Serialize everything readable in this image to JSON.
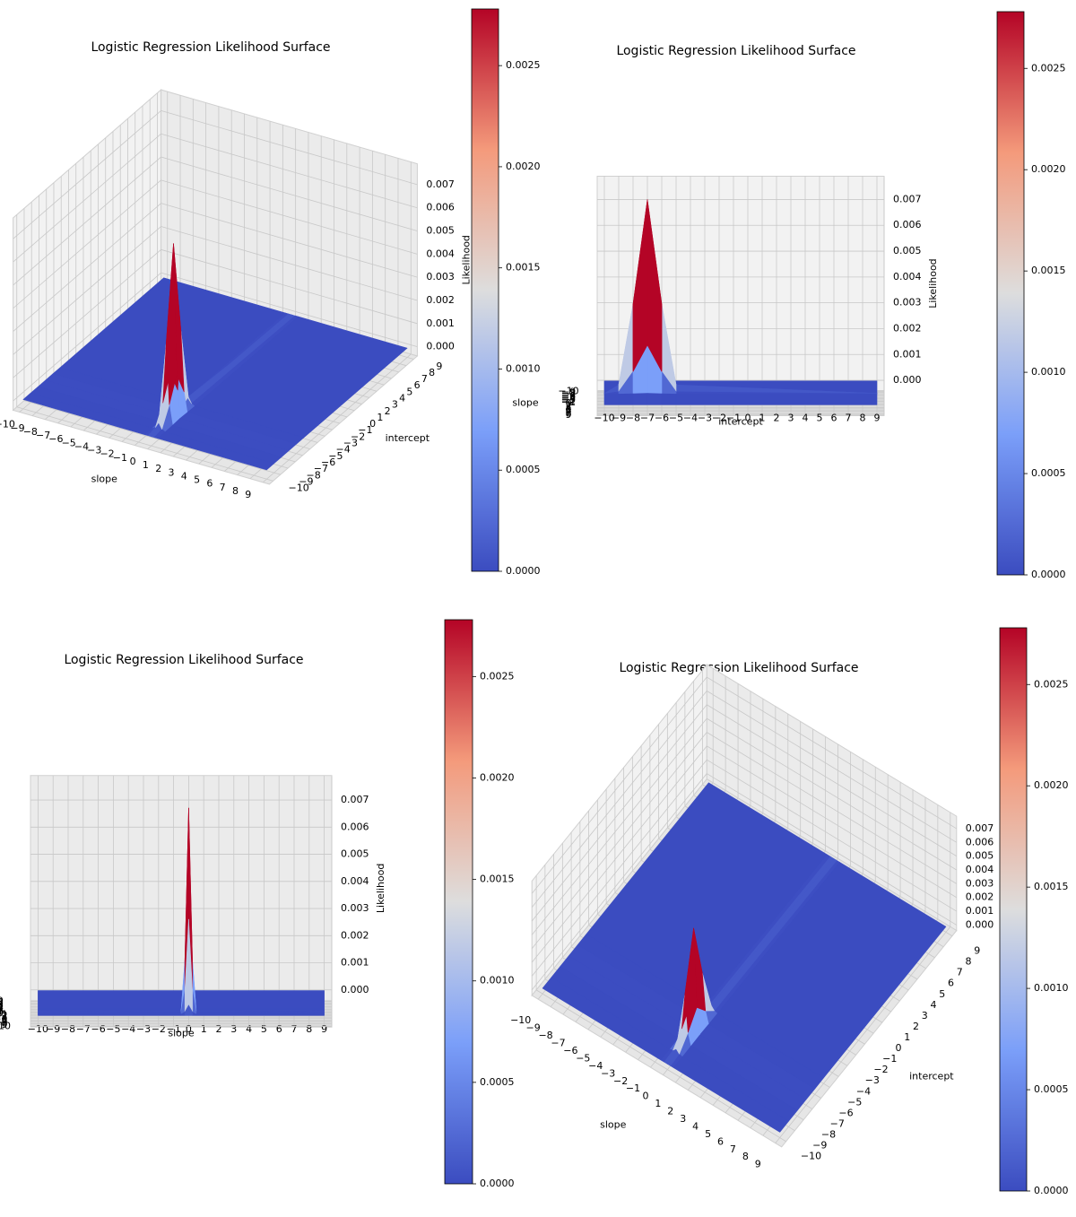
{
  "chart_data": [
    {
      "type": "surface3d",
      "title": "Logistic Regression Likelihood Surface",
      "xlabel": "slope",
      "ylabel": "intercept",
      "zlabel": "Likelihood",
      "xlim": [
        -10.5,
        9.5
      ],
      "ylim": [
        -10.5,
        9.5
      ],
      "zlim": [
        -0.0004,
        0.0079
      ],
      "xticks": [
        {
          "value": -10,
          "label": "−10"
        },
        {
          "value": -9,
          "label": "−9"
        },
        {
          "value": -8,
          "label": "−8"
        },
        {
          "value": -7,
          "label": "−7"
        },
        {
          "value": -6,
          "label": "−6"
        },
        {
          "value": -5,
          "label": "−5"
        },
        {
          "value": -4,
          "label": "−4"
        },
        {
          "value": -3,
          "label": "−3"
        },
        {
          "value": -2,
          "label": "−2"
        },
        {
          "value": -1,
          "label": "−1"
        },
        0,
        1,
        2,
        3,
        4,
        5,
        6,
        7,
        8,
        9
      ],
      "yticks": [
        {
          "value": -10,
          "label": "−10"
        },
        {
          "value": -9,
          "label": "−9"
        },
        {
          "value": -8,
          "label": "−8"
        },
        {
          "value": -7,
          "label": "−7"
        },
        {
          "value": -6,
          "label": "−6"
        },
        {
          "value": -5,
          "label": "−5"
        },
        {
          "value": -4,
          "label": "−4"
        },
        {
          "value": -3,
          "label": "−3"
        },
        {
          "value": -2,
          "label": "−2"
        },
        {
          "value": -1,
          "label": "−1"
        },
        0,
        1,
        2,
        3,
        4,
        5,
        6,
        7,
        8,
        9
      ],
      "zticks": [
        {
          "value": 0,
          "label": "0.000"
        },
        0.001,
        0.002,
        0.003,
        0.004,
        0.005,
        0.006,
        0.007
      ],
      "x": [
        -10,
        -0.5,
        -0.25,
        0,
        0.25,
        0.5,
        9
      ],
      "y": [
        -10,
        -9,
        -8,
        -7,
        -6,
        -5,
        9
      ],
      "z": [
        [
          0,
          0,
          0,
          0,
          0,
          0,
          0
        ],
        [
          0,
          0,
          1e-05,
          3e-05,
          1e-05,
          0,
          0
        ],
        [
          0,
          8e-05,
          0.00086,
          0.00188,
          0.00086,
          8e-05,
          0
        ],
        [
          0,
          0.00033,
          0.00345,
          0.0075,
          0.00345,
          0.00033,
          0
        ],
        [
          0,
          8e-05,
          0.00086,
          0.00188,
          0.00086,
          8e-05,
          0
        ],
        [
          0,
          0,
          1e-05,
          3e-05,
          1e-05,
          0,
          0
        ],
        [
          0,
          0,
          0,
          0,
          0,
          0,
          0
        ]
      ],
      "colormap": "coolwarm",
      "clim": [
        0,
        0.00278
      ],
      "colorbar_ticks": [
        {
          "value": 0,
          "label": "0.0000"
        },
        0.0005,
        {
          "value": 0.001,
          "label": "0.0010"
        },
        0.0015,
        {
          "value": 0.002,
          "label": "0.0020"
        },
        0.0025
      ],
      "view": {
        "elev": 30,
        "azim": -60
      }
    },
    {
      "type": "surface3d",
      "title": "Logistic Regression Likelihood Surface",
      "xlabel": "slope",
      "ylabel": "intercept",
      "zlabel": "Likelihood",
      "xlim": [
        -10.5,
        9.5
      ],
      "ylim": [
        -10.5,
        9.5
      ],
      "zlim": [
        -0.0004,
        0.0079
      ],
      "xticks": [
        {
          "value": -10,
          "label": "−10"
        },
        {
          "value": -9,
          "label": "−9"
        },
        {
          "value": -8,
          "label": "−8"
        },
        {
          "value": -7,
          "label": "−7"
        },
        {
          "value": -6,
          "label": "−6"
        },
        {
          "value": -5,
          "label": "−5"
        },
        {
          "value": -4,
          "label": "−4"
        },
        {
          "value": -3,
          "label": "−3"
        },
        {
          "value": -2,
          "label": "−2"
        },
        {
          "value": -1,
          "label": "−1"
        },
        0,
        1,
        2,
        3,
        4,
        5,
        6,
        7,
        8,
        9
      ],
      "yticks": [
        {
          "value": -10,
          "label": "−10"
        },
        {
          "value": -9,
          "label": "−9"
        },
        {
          "value": -8,
          "label": "−8"
        },
        {
          "value": -7,
          "label": "−7"
        },
        {
          "value": -6,
          "label": "−6"
        },
        {
          "value": -5,
          "label": "−5"
        },
        {
          "value": -4,
          "label": "−4"
        },
        {
          "value": -3,
          "label": "−3"
        },
        {
          "value": -2,
          "label": "−2"
        },
        {
          "value": -1,
          "label": "−1"
        },
        0,
        1,
        2,
        3,
        4,
        5,
        6,
        7,
        8,
        9
      ],
      "zticks": [
        {
          "value": 0,
          "label": "0.000"
        },
        0.001,
        0.002,
        0.003,
        0.004,
        0.005,
        0.006,
        0.007
      ],
      "x": [
        -10,
        -0.5,
        -0.25,
        0,
        0.25,
        0.5,
        9
      ],
      "y": [
        -10,
        -9,
        -8,
        -7,
        -6,
        -5,
        9
      ],
      "z": [
        [
          0,
          0,
          0,
          0,
          0,
          0,
          0
        ],
        [
          0,
          0,
          1e-05,
          3e-05,
          1e-05,
          0,
          0
        ],
        [
          0,
          8e-05,
          0.00086,
          0.00188,
          0.00086,
          8e-05,
          0
        ],
        [
          0,
          0.00033,
          0.00345,
          0.0075,
          0.00345,
          0.00033,
          0
        ],
        [
          0,
          8e-05,
          0.00086,
          0.00188,
          0.00086,
          8e-05,
          0
        ],
        [
          0,
          0,
          1e-05,
          3e-05,
          1e-05,
          0,
          0
        ],
        [
          0,
          0,
          0,
          0,
          0,
          0,
          0
        ]
      ],
      "colormap": "coolwarm",
      "clim": [
        0,
        0.00278
      ],
      "colorbar_ticks": [
        {
          "value": 0,
          "label": "0.0000"
        },
        0.0005,
        {
          "value": 0.001,
          "label": "0.0010"
        },
        0.0015,
        {
          "value": 0.002,
          "label": "0.0020"
        },
        0.0025
      ],
      "view": {
        "elev": 5,
        "azim": 0
      }
    },
    {
      "type": "surface3d",
      "title": "Logistic Regression Likelihood Surface",
      "xlabel": "slope",
      "ylabel": "intercept",
      "zlabel": "Likelihood",
      "xlim": [
        -10.5,
        9.5
      ],
      "ylim": [
        -10.5,
        9.5
      ],
      "zlim": [
        -0.0004,
        0.0079
      ],
      "xticks": [
        {
          "value": -10,
          "label": "−10"
        },
        {
          "value": -9,
          "label": "−9"
        },
        {
          "value": -8,
          "label": "−8"
        },
        {
          "value": -7,
          "label": "−7"
        },
        {
          "value": -6,
          "label": "−6"
        },
        {
          "value": -5,
          "label": "−5"
        },
        {
          "value": -4,
          "label": "−4"
        },
        {
          "value": -3,
          "label": "−3"
        },
        {
          "value": -2,
          "label": "−2"
        },
        {
          "value": -1,
          "label": "−1"
        },
        0,
        1,
        2,
        3,
        4,
        5,
        6,
        7,
        8,
        9
      ],
      "yticks": [
        {
          "value": -10,
          "label": "−10"
        },
        {
          "value": -9,
          "label": "−9"
        },
        {
          "value": -8,
          "label": "−8"
        },
        {
          "value": -7,
          "label": "−7"
        },
        {
          "value": -6,
          "label": "−6"
        },
        {
          "value": -5,
          "label": "−5"
        },
        {
          "value": -4,
          "label": "−4"
        },
        {
          "value": -3,
          "label": "−3"
        },
        {
          "value": -2,
          "label": "−2"
        },
        {
          "value": -1,
          "label": "−1"
        },
        0,
        1,
        2,
        3,
        4,
        5,
        6,
        7,
        8,
        9
      ],
      "zticks": [
        {
          "value": 0,
          "label": "0.000"
        },
        0.001,
        0.002,
        0.003,
        0.004,
        0.005,
        0.006,
        0.007
      ],
      "x": [
        -10,
        -0.5,
        -0.25,
        0,
        0.25,
        0.5,
        9
      ],
      "y": [
        -10,
        -9,
        -8,
        -7,
        -6,
        -5,
        9
      ],
      "z": [
        [
          0,
          0,
          0,
          0,
          0,
          0,
          0
        ],
        [
          0,
          0,
          1e-05,
          3e-05,
          1e-05,
          0,
          0
        ],
        [
          0,
          8e-05,
          0.00086,
          0.00188,
          0.00086,
          8e-05,
          0
        ],
        [
          0,
          0.00033,
          0.00345,
          0.0075,
          0.00345,
          0.00033,
          0
        ],
        [
          0,
          8e-05,
          0.00086,
          0.00188,
          0.00086,
          8e-05,
          0
        ],
        [
          0,
          0,
          1e-05,
          3e-05,
          1e-05,
          0,
          0
        ],
        [
          0,
          0,
          0,
          0,
          0,
          0,
          0
        ]
      ],
      "colormap": "coolwarm",
      "clim": [
        0,
        0.00278
      ],
      "colorbar_ticks": [
        {
          "value": 0,
          "label": "0.0000"
        },
        0.0005,
        {
          "value": 0.001,
          "label": "0.0010"
        },
        0.0015,
        {
          "value": 0.002,
          "label": "0.0020"
        },
        0.0025
      ],
      "view": {
        "elev": 5,
        "azim": -90
      }
    },
    {
      "type": "surface3d",
      "title": "Logistic Regression Likelihood Surface",
      "xlabel": "slope",
      "ylabel": "intercept",
      "zlabel": "Likelihood",
      "xlim": [
        -10.5,
        9.5
      ],
      "ylim": [
        -10.5,
        9.5
      ],
      "zlim": [
        -0.0004,
        0.0079
      ],
      "xticks": [
        {
          "value": -10,
          "label": "−10"
        },
        {
          "value": -9,
          "label": "−9"
        },
        {
          "value": -8,
          "label": "−8"
        },
        {
          "value": -7,
          "label": "−7"
        },
        {
          "value": -6,
          "label": "−6"
        },
        {
          "value": -5,
          "label": "−5"
        },
        {
          "value": -4,
          "label": "−4"
        },
        {
          "value": -3,
          "label": "−3"
        },
        {
          "value": -2,
          "label": "−2"
        },
        {
          "value": -1,
          "label": "−1"
        },
        0,
        1,
        2,
        3,
        4,
        5,
        6,
        7,
        8,
        9
      ],
      "yticks": [
        {
          "value": -10,
          "label": "−10"
        },
        {
          "value": -9,
          "label": "−9"
        },
        {
          "value": -8,
          "label": "−8"
        },
        {
          "value": -7,
          "label": "−7"
        },
        {
          "value": -6,
          "label": "−6"
        },
        {
          "value": -5,
          "label": "−5"
        },
        {
          "value": -4,
          "label": "−4"
        },
        {
          "value": -3,
          "label": "−3"
        },
        {
          "value": -2,
          "label": "−2"
        },
        {
          "value": -1,
          "label": "−1"
        },
        0,
        1,
        2,
        3,
        4,
        5,
        6,
        7,
        8,
        9
      ],
      "zticks": [
        {
          "value": 0,
          "label": "0.000"
        },
        0.001,
        0.002,
        0.003,
        0.004,
        0.005,
        0.006,
        0.007
      ],
      "x": [
        -10,
        -0.5,
        -0.25,
        0,
        0.25,
        0.5,
        9
      ],
      "y": [
        -10,
        -9,
        -8,
        -7,
        -6,
        -5,
        9
      ],
      "z": [
        [
          0,
          0,
          0,
          0,
          0,
          0,
          0
        ],
        [
          0,
          0,
          1e-05,
          3e-05,
          1e-05,
          0,
          0
        ],
        [
          0,
          8e-05,
          0.00086,
          0.00188,
          0.00086,
          8e-05,
          0
        ],
        [
          0,
          0.00033,
          0.00345,
          0.0075,
          0.00345,
          0.00033,
          0
        ],
        [
          0,
          8e-05,
          0.00086,
          0.00188,
          0.00086,
          8e-05,
          0
        ],
        [
          0,
          0,
          1e-05,
          3e-05,
          1e-05,
          0,
          0
        ],
        [
          0,
          0,
          0,
          0,
          0,
          0,
          0
        ]
      ],
      "colormap": "coolwarm",
      "clim": [
        0,
        0.00278
      ],
      "colorbar_ticks": [
        {
          "value": 0,
          "label": "0.0000"
        },
        0.0005,
        {
          "value": 0.001,
          "label": "0.0010"
        },
        0.0015,
        {
          "value": 0.002,
          "label": "0.0020"
        },
        0.0025
      ],
      "view": {
        "elev": 60,
        "azim": -55
      }
    }
  ]
}
